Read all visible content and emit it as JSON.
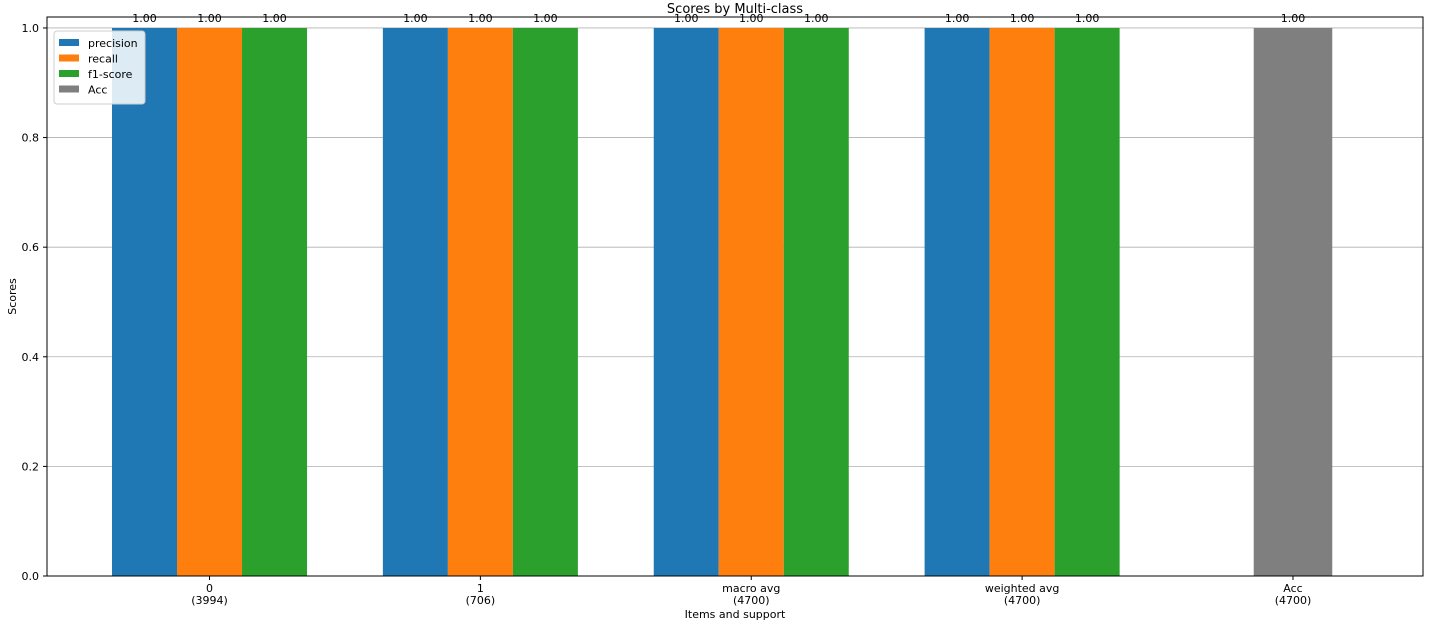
{
  "chart_data": {
    "type": "bar",
    "title": "Scores by Multi-class",
    "xlabel": "Items and support",
    "ylabel": "Scores",
    "ylim": [
      0,
      1.02
    ],
    "yticks": [
      "0.0",
      "0.2",
      "0.4",
      "0.6",
      "0.8",
      "1.0"
    ],
    "grid": "horizontal",
    "legend_position": "top-left",
    "groups": [
      {
        "tick_label": [
          "0",
          "(3994)"
        ],
        "bars": [
          {
            "series": "precision",
            "value": 1.0,
            "label": "1.00"
          },
          {
            "series": "recall",
            "value": 1.0,
            "label": "1.00"
          },
          {
            "series": "f1-score",
            "value": 1.0,
            "label": "1.00"
          }
        ]
      },
      {
        "tick_label": [
          "1",
          "(706)"
        ],
        "bars": [
          {
            "series": "precision",
            "value": 1.0,
            "label": "1.00"
          },
          {
            "series": "recall",
            "value": 1.0,
            "label": "1.00"
          },
          {
            "series": "f1-score",
            "value": 1.0,
            "label": "1.00"
          }
        ]
      },
      {
        "tick_label": [
          "macro avg",
          "(4700)"
        ],
        "bars": [
          {
            "series": "precision",
            "value": 1.0,
            "label": "1.00"
          },
          {
            "series": "recall",
            "value": 1.0,
            "label": "1.00"
          },
          {
            "series": "f1-score",
            "value": 1.0,
            "label": "1.00"
          }
        ]
      },
      {
        "tick_label": [
          "weighted avg",
          "(4700)"
        ],
        "bars": [
          {
            "series": "precision",
            "value": 1.0,
            "label": "1.00"
          },
          {
            "series": "recall",
            "value": 1.0,
            "label": "1.00"
          },
          {
            "series": "f1-score",
            "value": 1.0,
            "label": "1.00"
          }
        ]
      },
      {
        "tick_label": [
          "Acc",
          "(4700)"
        ],
        "bars": [
          {
            "series": "Acc",
            "value": 1.0,
            "label": "1.00"
          }
        ]
      }
    ],
    "series": [
      {
        "name": "precision",
        "color": "#1f77b4"
      },
      {
        "name": "recall",
        "color": "#ff7f0e"
      },
      {
        "name": "f1-score",
        "color": "#2ca02c"
      },
      {
        "name": "Acc",
        "color": "#7f7f7f"
      }
    ]
  }
}
